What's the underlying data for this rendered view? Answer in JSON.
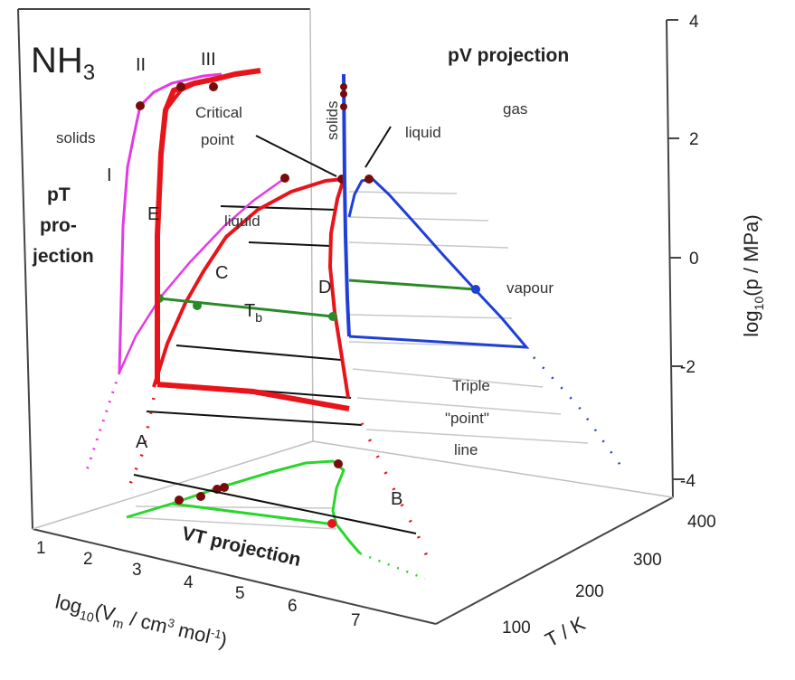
{
  "compound": {
    "base": "NH",
    "subscript": "3"
  },
  "projections": {
    "pV": "pV projection",
    "pT": [
      "pT",
      "pro-",
      "jection"
    ],
    "VT": "VT projection"
  },
  "phase_labels": {
    "solids_left": "solids",
    "solids_vertical": "solids",
    "gas": "gas",
    "liquid_pv": "liquid",
    "liquid_pt": "liquid",
    "vapour": "vapour",
    "critical_point": [
      "Critical",
      "point"
    ],
    "triple_point_line": [
      "Triple",
      "\"point\"",
      "line"
    ],
    "solid_phases": [
      "I",
      "II",
      "III"
    ],
    "boiling_temperature": {
      "base": "T",
      "subscript": "b"
    }
  },
  "curve_letters": [
    "A",
    "B",
    "C",
    "D",
    "E"
  ],
  "axes": {
    "pressure": {
      "title_parts": {
        "pre": "log",
        "sub": "10",
        "post": "(p / MPa)"
      },
      "ticks": [
        "4",
        "2",
        "0",
        "-2",
        "-4"
      ]
    },
    "volume": {
      "title_parts": {
        "pre": "log",
        "sub": "10",
        "mid": "(V",
        "sub2": "m",
        "mid2": " / cm",
        "sup": "3",
        "mid3": " mol",
        "sup2": "-1",
        "post": ")"
      },
      "ticks": [
        "1",
        "2",
        "3",
        "4",
        "5",
        "6",
        "7"
      ]
    },
    "temperature": {
      "title": "T / K",
      "ticks": [
        "100",
        "200",
        "300",
        "400"
      ]
    }
  },
  "colors": {
    "coexistence_curve": "#e8141b",
    "pT_projection": "#e33be3",
    "pV_projection": "#1f3fd6",
    "VT_projection": "#29d62c",
    "boiling_line": "#2a8a2a",
    "marker": "#7a0b0b"
  }
}
